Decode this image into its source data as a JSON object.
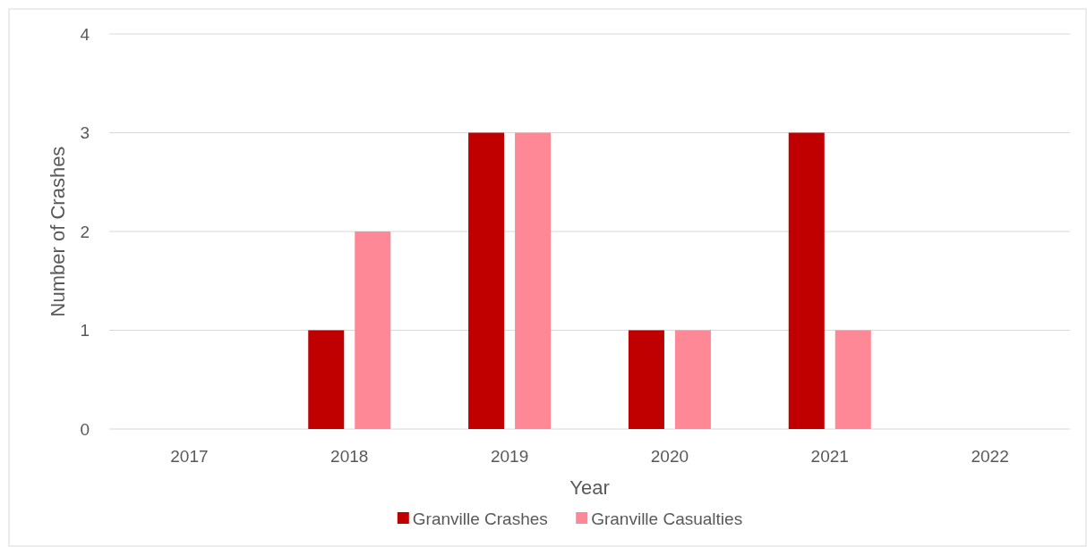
{
  "chart_data": {
    "type": "bar",
    "xlabel": "Year",
    "ylabel": "Number of Crashes",
    "categories": [
      "2017",
      "2018",
      "2019",
      "2020",
      "2021",
      "2022"
    ],
    "series": [
      {
        "name": "Granville Crashes",
        "color": "#c00000",
        "values": [
          0,
          1,
          3,
          1,
          3,
          0
        ]
      },
      {
        "name": "Granville Casualties",
        "color": "#ff8896",
        "values": [
          0,
          2,
          3,
          1,
          1,
          0
        ]
      }
    ],
    "ylim": [
      0,
      4
    ],
    "yticks": [
      0,
      1,
      2,
      3,
      4
    ],
    "grid": "y",
    "legend": "bottom"
  }
}
